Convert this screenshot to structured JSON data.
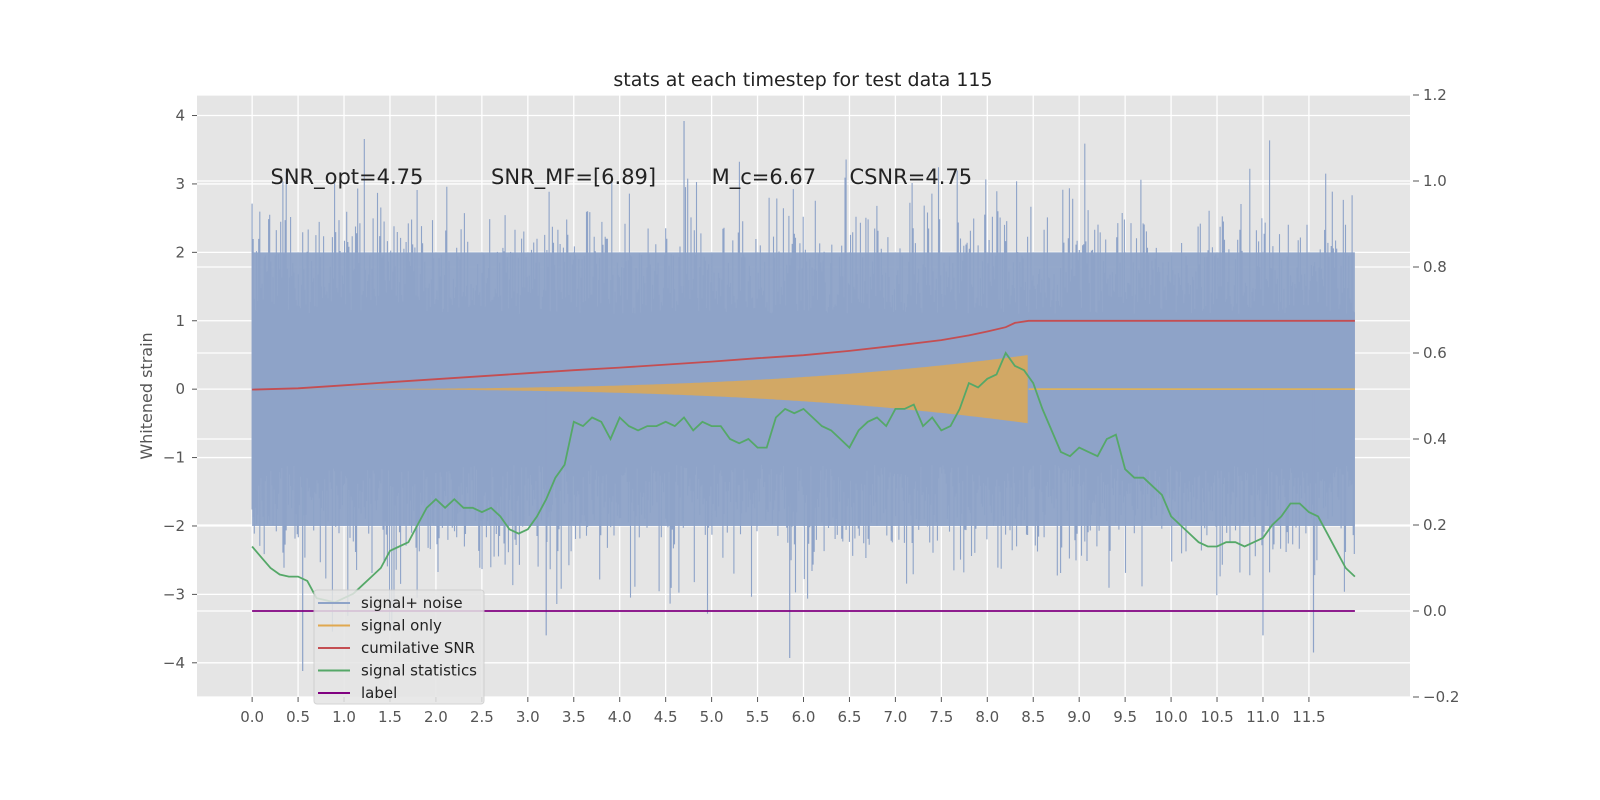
{
  "chart_data": {
    "type": "line",
    "title": "stats at each timestep for test data 115",
    "ylabel": "Whitened strain",
    "ylabel_right": "",
    "xlabel": "",
    "xlim": [
      -0.6,
      12.6
    ],
    "ylim": [
      -4.5,
      4.3
    ],
    "ylim_right": [
      -0.2,
      1.2
    ],
    "x_ticks": [
      "0.0",
      "0.5",
      "1.0",
      "1.5",
      "2.0",
      "2.5",
      "3.0",
      "3.5",
      "4.0",
      "4.5",
      "5.0",
      "5.5",
      "6.0",
      "6.5",
      "7.0",
      "7.5",
      "8.0",
      "8.5",
      "9.0",
      "9.5",
      "10.0",
      "10.5",
      "11.0",
      "11.5"
    ],
    "y_ticks": [
      "−4",
      "−3",
      "−2",
      "−1",
      "0",
      "1",
      "2",
      "3",
      "4"
    ],
    "y_ticks_right": [
      "−0.2",
      "0.0",
      "0.2",
      "0.4",
      "0.6",
      "0.8",
      "1.0",
      "1.2"
    ],
    "grid": true,
    "legend_placement": "lower-left",
    "annotations": [
      {
        "text": "SNR_opt=4.75",
        "x": 0.2,
        "y": 3.1
      },
      {
        "text": "SNR_MF=[6.89]",
        "x": 2.6,
        "y": 3.1
      },
      {
        "text": "M_c=6.67",
        "x": 5.0,
        "y": 3.1
      },
      {
        "text": "CSNR=4.75",
        "x": 6.5,
        "y": 3.1
      }
    ],
    "series": [
      {
        "name": "signal+ noise",
        "axis": "left",
        "color": "#8ea3c8",
        "style": "noise-band",
        "x_range": [
          0.0,
          12.0
        ],
        "typical_range": [
          -2.0,
          2.0
        ],
        "max": 3.92,
        "min": -4.12
      },
      {
        "name": "signal only",
        "axis": "left",
        "color": "#e0a84f",
        "style": "chirp",
        "x_range": [
          0.0,
          12.0
        ],
        "peak_x": 8.45,
        "peak_amplitude": 0.5
      },
      {
        "name": "cumilative SNR",
        "axis": "right",
        "color": "#c44e52",
        "x": [
          0.0,
          0.5,
          1.0,
          1.5,
          2.0,
          2.5,
          3.0,
          3.5,
          4.0,
          4.5,
          5.0,
          5.5,
          6.0,
          6.5,
          7.0,
          7.5,
          7.8,
          8.0,
          8.2,
          8.3,
          8.45,
          9.0,
          10.0,
          11.0,
          12.0
        ],
        "y": [
          0.515,
          0.518,
          0.525,
          0.532,
          0.539,
          0.546,
          0.553,
          0.56,
          0.566,
          0.573,
          0.58,
          0.588,
          0.595,
          0.605,
          0.617,
          0.63,
          0.641,
          0.65,
          0.66,
          0.67,
          0.675,
          0.675,
          0.675,
          0.675,
          0.675
        ]
      },
      {
        "name": "signal statistics",
        "axis": "right",
        "color": "#55a868",
        "x": [
          0.0,
          0.1,
          0.2,
          0.3,
          0.4,
          0.5,
          0.6,
          0.7,
          0.8,
          0.9,
          1.0,
          1.1,
          1.2,
          1.3,
          1.4,
          1.5,
          1.6,
          1.7,
          1.8,
          1.9,
          2.0,
          2.1,
          2.2,
          2.3,
          2.4,
          2.5,
          2.6,
          2.7,
          2.8,
          2.9,
          3.0,
          3.1,
          3.2,
          3.3,
          3.4,
          3.5,
          3.6,
          3.7,
          3.8,
          3.9,
          4.0,
          4.1,
          4.2,
          4.3,
          4.4,
          4.5,
          4.6,
          4.7,
          4.8,
          4.9,
          5.0,
          5.1,
          5.2,
          5.3,
          5.4,
          5.5,
          5.6,
          5.7,
          5.8,
          5.9,
          6.0,
          6.1,
          6.2,
          6.3,
          6.4,
          6.5,
          6.6,
          6.7,
          6.8,
          6.9,
          7.0,
          7.1,
          7.2,
          7.3,
          7.4,
          7.5,
          7.6,
          7.7,
          7.8,
          7.9,
          8.0,
          8.1,
          8.2,
          8.3,
          8.4,
          8.5,
          8.6,
          8.7,
          8.8,
          8.9,
          9.0,
          9.1,
          9.2,
          9.3,
          9.4,
          9.5,
          9.6,
          9.7,
          9.8,
          9.9,
          10.0,
          10.1,
          10.2,
          10.3,
          10.4,
          10.5,
          10.6,
          10.7,
          10.8,
          10.9,
          11.0,
          11.1,
          11.2,
          11.3,
          11.4,
          11.5,
          11.6,
          11.7,
          11.8,
          11.9,
          12.0
        ],
        "y": [
          0.15,
          0.125,
          0.1,
          0.085,
          0.08,
          0.08,
          0.07,
          0.03,
          0.025,
          0.02,
          0.03,
          0.04,
          0.06,
          0.08,
          0.1,
          0.14,
          0.15,
          0.16,
          0.2,
          0.24,
          0.26,
          0.24,
          0.26,
          0.24,
          0.24,
          0.23,
          0.24,
          0.22,
          0.19,
          0.18,
          0.19,
          0.22,
          0.26,
          0.31,
          0.34,
          0.44,
          0.43,
          0.45,
          0.44,
          0.4,
          0.45,
          0.43,
          0.42,
          0.43,
          0.43,
          0.44,
          0.43,
          0.45,
          0.42,
          0.44,
          0.43,
          0.43,
          0.4,
          0.39,
          0.4,
          0.38,
          0.38,
          0.45,
          0.47,
          0.46,
          0.47,
          0.45,
          0.43,
          0.42,
          0.4,
          0.38,
          0.42,
          0.44,
          0.45,
          0.43,
          0.47,
          0.47,
          0.48,
          0.43,
          0.45,
          0.42,
          0.43,
          0.47,
          0.53,
          0.52,
          0.54,
          0.55,
          0.6,
          0.57,
          0.56,
          0.53,
          0.47,
          0.42,
          0.37,
          0.36,
          0.38,
          0.37,
          0.36,
          0.4,
          0.41,
          0.33,
          0.31,
          0.31,
          0.29,
          0.27,
          0.22,
          0.2,
          0.18,
          0.16,
          0.15,
          0.15,
          0.16,
          0.16,
          0.15,
          0.16,
          0.17,
          0.2,
          0.22,
          0.25,
          0.25,
          0.23,
          0.22,
          0.18,
          0.14,
          0.1,
          0.08
        ]
      },
      {
        "name": "label",
        "axis": "right",
        "color": "#800080",
        "x": [
          0.0,
          12.0
        ],
        "y": [
          0.0,
          0.0
        ]
      }
    ]
  }
}
